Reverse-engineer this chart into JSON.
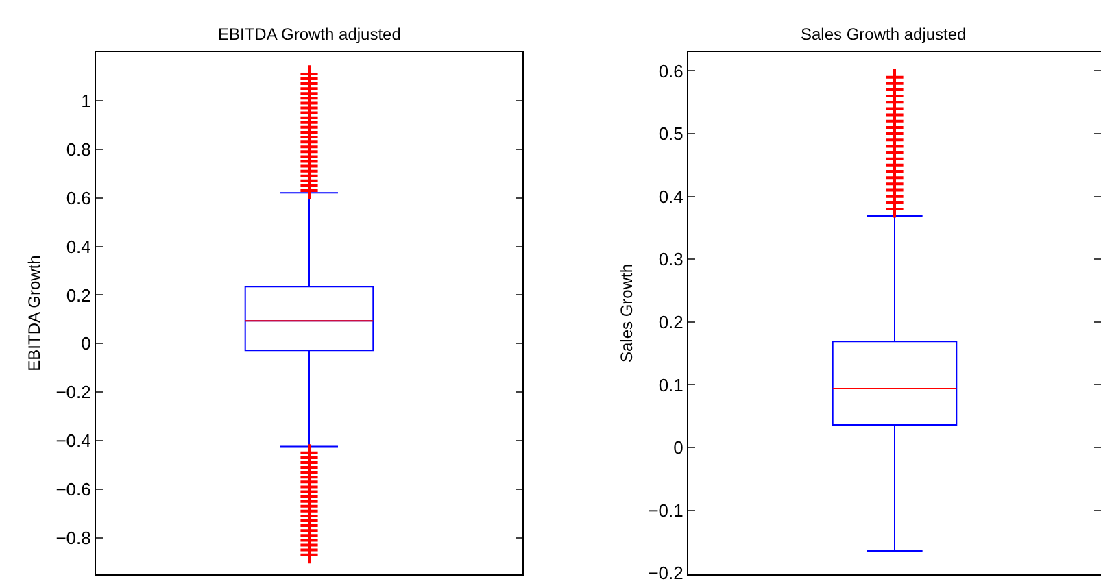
{
  "chart_data": [
    {
      "type": "box",
      "title": "EBITDA Growth adjusted",
      "ylabel": "EBITDA Growth",
      "categories": [
        null
      ],
      "marker": "cross",
      "tick_labels": "y",
      "series": [
        {
          "color": "#0000ff",
          "boxes": [
            {
              "low": -0.424,
              "q1": -0.028,
              "median": 0.093,
              "q3": 0.234,
              "high": 0.621,
              "outliers": [
                0.63,
                0.65,
                0.67,
                0.69,
                0.71,
                0.73,
                0.75,
                0.77,
                0.79,
                0.81,
                0.83,
                0.85,
                0.87,
                0.89,
                0.91,
                0.93,
                0.95,
                0.97,
                0.99,
                1.01,
                1.03,
                1.05,
                1.07,
                1.09,
                1.11,
                -0.45,
                -0.47,
                -0.49,
                -0.51,
                -0.53,
                -0.55,
                -0.57,
                -0.59,
                -0.61,
                -0.63,
                -0.65,
                -0.67,
                -0.69,
                -0.71,
                -0.73,
                -0.75,
                -0.77,
                -0.79,
                -0.81,
                -0.83,
                -0.85,
                -0.87
              ]
            }
          ]
        }
      ],
      "ylim": [
        -0.95,
        1.2
      ],
      "yticks": [
        -0.8,
        -0.6,
        -0.4,
        -0.2,
        0,
        0.2,
        0.4,
        0.6,
        0.8,
        1
      ]
    },
    {
      "type": "box",
      "title": "Sales Growth adjusted",
      "ylabel": "Sales Growth",
      "categories": [
        null
      ],
      "marker": "cross",
      "tick_labels": "y",
      "series": [
        {
          "color": "#0000ff",
          "boxes": [
            {
              "low": -0.165,
              "q1": 0.036,
              "median": 0.094,
              "q3": 0.169,
              "high": 0.369,
              "outliers": [
                0.38,
                0.39,
                0.4,
                0.41,
                0.42,
                0.43,
                0.44,
                0.45,
                0.46,
                0.47,
                0.48,
                0.49,
                0.5,
                0.51,
                0.52,
                0.53,
                0.54,
                0.55,
                0.56,
                0.57,
                0.58,
                0.59
              ]
            }
          ]
        }
      ],
      "ylim": [
        -0.202,
        0.63
      ],
      "yticks": [
        -0.2,
        -0.1,
        0,
        0.1,
        0.2,
        0.3,
        0.4,
        0.5,
        0.6
      ]
    }
  ]
}
